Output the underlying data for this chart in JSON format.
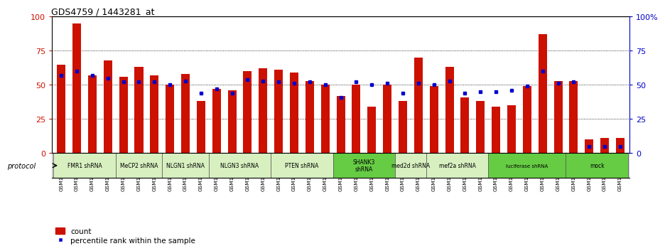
{
  "title": "GDS4759 / 1443281_at",
  "samples": [
    "GSM1145756",
    "GSM1145757",
    "GSM1145758",
    "GSM1145759",
    "GSM1145764",
    "GSM1145765",
    "GSM1145766",
    "GSM1145767",
    "GSM1145768",
    "GSM1145769",
    "GSM1145770",
    "GSM1145771",
    "GSM1145772",
    "GSM1145773",
    "GSM1145774",
    "GSM1145775",
    "GSM1145776",
    "GSM1145777",
    "GSM1145778",
    "GSM1145779",
    "GSM1145780",
    "GSM1145781",
    "GSM1145782",
    "GSM1145783",
    "GSM1145784",
    "GSM1145785",
    "GSM1145786",
    "GSM1145787",
    "GSM1145788",
    "GSM1145789",
    "GSM1145760",
    "GSM1145761",
    "GSM1145762",
    "GSM1145763",
    "GSM1145942",
    "GSM1145943",
    "GSM1145944"
  ],
  "counts": [
    65,
    95,
    57,
    68,
    56,
    63,
    57,
    50,
    58,
    38,
    47,
    46,
    60,
    62,
    61,
    59,
    53,
    50,
    42,
    50,
    34,
    50,
    38,
    70,
    49,
    63,
    41,
    38,
    34,
    35,
    49,
    87,
    53,
    53,
    10,
    11,
    11
  ],
  "percentiles": [
    57,
    60,
    57,
    55,
    52,
    52,
    52,
    50,
    53,
    44,
    47,
    44,
    54,
    53,
    52,
    51,
    52,
    50,
    41,
    52,
    50,
    51,
    44,
    51,
    50,
    53,
    44,
    45,
    45,
    46,
    49,
    60,
    51,
    52,
    5,
    5,
    5
  ],
  "protocols": [
    {
      "label": "FMR1 shRNA",
      "start": 0,
      "end": 4,
      "color": "#d8f0c0"
    },
    {
      "label": "MeCP2 shRNA",
      "start": 4,
      "end": 7,
      "color": "#d8f0c0"
    },
    {
      "label": "NLGN1 shRNA",
      "start": 7,
      "end": 10,
      "color": "#d8f0c0"
    },
    {
      "label": "NLGN3 shRNA",
      "start": 10,
      "end": 14,
      "color": "#d8f0c0"
    },
    {
      "label": "PTEN shRNA",
      "start": 14,
      "end": 18,
      "color": "#d8f0c0"
    },
    {
      "label": "SHANK3\nshRNA",
      "start": 18,
      "end": 22,
      "color": "#66cc44"
    },
    {
      "label": "med2d shRNA",
      "start": 22,
      "end": 24,
      "color": "#d8f0c0"
    },
    {
      "label": "mef2a shRNA",
      "start": 24,
      "end": 28,
      "color": "#d8f0c0"
    },
    {
      "label": "luciferase shRNA",
      "start": 28,
      "end": 33,
      "color": "#66cc44"
    },
    {
      "label": "mock",
      "start": 33,
      "end": 37,
      "color": "#66cc44"
    }
  ],
  "bar_color": "#cc1100",
  "dot_color": "#0000cc",
  "yticks": [
    0,
    25,
    50,
    75,
    100
  ],
  "gridlines": [
    25,
    50,
    75
  ],
  "bg_color": "#ffffff",
  "xtick_bg": "#d0d0d0"
}
